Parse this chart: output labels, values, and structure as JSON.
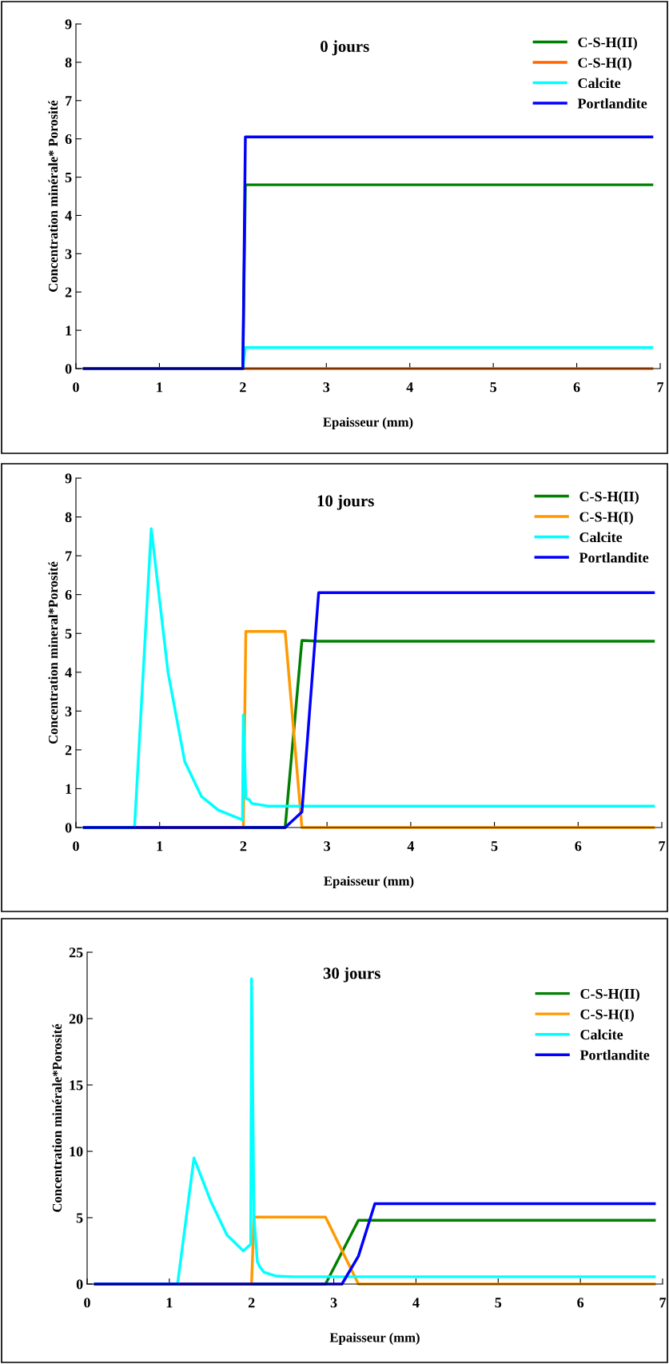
{
  "chart_data": [
    {
      "type": "line",
      "title": "0 jours",
      "xlabel": "Epaisseur (mm)",
      "ylabel": "Concentration minérale* Porosité",
      "xlim": [
        0,
        7
      ],
      "xticks": [
        0,
        1,
        2,
        3,
        4,
        5,
        6,
        7
      ],
      "ylim": [
        0,
        9
      ],
      "yticks": [
        0,
        1,
        2,
        3,
        4,
        5,
        6,
        7,
        8,
        9
      ],
      "grid": false,
      "legend": "top right",
      "marker": "none",
      "line_style": "solid",
      "series": [
        {
          "name": "C-S-H(II)",
          "color": "#008000",
          "x": [
            0.1,
            2.0,
            2.03,
            6.9
          ],
          "values": [
            0,
            0,
            4.8,
            4.8
          ]
        },
        {
          "name": "C-S-H(I)",
          "color": "#ff6600",
          "x": [
            0.1,
            6.9
          ],
          "values": [
            0,
            0
          ]
        },
        {
          "name": "Calcite",
          "color": "#00ffff",
          "x": [
            0.1,
            2.0,
            2.03,
            6.9
          ],
          "values": [
            0,
            0,
            0.55,
            0.55
          ]
        },
        {
          "name": "Portlandite",
          "color": "#0000ff",
          "x": [
            0.1,
            2.0,
            2.03,
            6.9
          ],
          "values": [
            0,
            0,
            6.05,
            6.05
          ]
        }
      ]
    },
    {
      "type": "line",
      "title": "10 jours",
      "xlabel": "Epaisseur (mm)",
      "ylabel": "Concentration mineral*Porosité",
      "xlim": [
        0,
        7
      ],
      "xticks": [
        0,
        1,
        2,
        3,
        4,
        5,
        6,
        7
      ],
      "ylim": [
        0,
        9
      ],
      "yticks": [
        0,
        1,
        2,
        3,
        4,
        5,
        6,
        7,
        8,
        9
      ],
      "grid": false,
      "legend": "top right",
      "marker": "none",
      "line_style": "solid",
      "series": [
        {
          "name": "C-S-H(II)",
          "color": "#008000",
          "x": [
            0.1,
            2.5,
            2.7,
            2.9,
            6.9
          ],
          "values": [
            0,
            0,
            4.82,
            4.8,
            4.8
          ]
        },
        {
          "name": "C-S-H(I)",
          "color": "#ff9900",
          "x": [
            0.1,
            2.0,
            2.03,
            2.5,
            2.7,
            6.9
          ],
          "values": [
            0,
            0,
            5.05,
            5.05,
            0,
            0
          ]
        },
        {
          "name": "Calcite",
          "color": "#00ffff",
          "x": [
            0.1,
            0.7,
            0.9,
            1.1,
            1.3,
            1.5,
            1.7,
            1.99,
            2.0,
            2.03,
            2.07,
            2.1,
            2.3,
            6.9
          ],
          "values": [
            0,
            0,
            7.7,
            4.0,
            1.7,
            0.8,
            0.45,
            0.2,
            2.9,
            0.75,
            0.72,
            0.62,
            0.55,
            0.55
          ]
        },
        {
          "name": "Portlandite",
          "color": "#0000ff",
          "x": [
            0.1,
            2.5,
            2.7,
            2.9,
            6.9
          ],
          "values": [
            0,
            0,
            0.4,
            6.05,
            6.05
          ]
        }
      ]
    },
    {
      "type": "line",
      "title": "30 jours",
      "xlabel": "Epaisseur (mm)",
      "ylabel": "Concentration minérale*Porosité",
      "xlim": [
        0,
        7
      ],
      "xticks": [
        0,
        1,
        2,
        3,
        4,
        5,
        6,
        7
      ],
      "ylim": [
        0,
        25
      ],
      "yticks": [
        0,
        5,
        10,
        15,
        20,
        25
      ],
      "grid": false,
      "legend": "top right",
      "marker": "none",
      "line_style": "solid",
      "series": [
        {
          "name": "C-S-H(II)",
          "color": "#008000",
          "x": [
            0.1,
            2.9,
            3.3,
            6.9
          ],
          "values": [
            0,
            0,
            4.8,
            4.8
          ]
        },
        {
          "name": "C-S-H(I)",
          "color": "#ff9900",
          "x": [
            0.1,
            2.0,
            2.03,
            2.9,
            3.3,
            6.9
          ],
          "values": [
            0,
            0,
            5.05,
            5.05,
            0,
            0
          ]
        },
        {
          "name": "Calcite",
          "color": "#00ffff",
          "x": [
            0.1,
            1.1,
            1.3,
            1.5,
            1.7,
            1.9,
            1.99,
            2.0,
            2.03,
            2.07,
            2.1,
            2.15,
            2.3,
            2.5,
            6.9
          ],
          "values": [
            0,
            0,
            9.5,
            6.3,
            3.7,
            2.5,
            3.0,
            23,
            5.0,
            1.7,
            1.3,
            0.9,
            0.6,
            0.55,
            0.55
          ]
        },
        {
          "name": "Portlandite",
          "color": "#0000ff",
          "x": [
            0.1,
            3.1,
            3.3,
            3.5,
            6.9
          ],
          "values": [
            0,
            0,
            2.1,
            6.05,
            6.05
          ]
        }
      ]
    }
  ]
}
